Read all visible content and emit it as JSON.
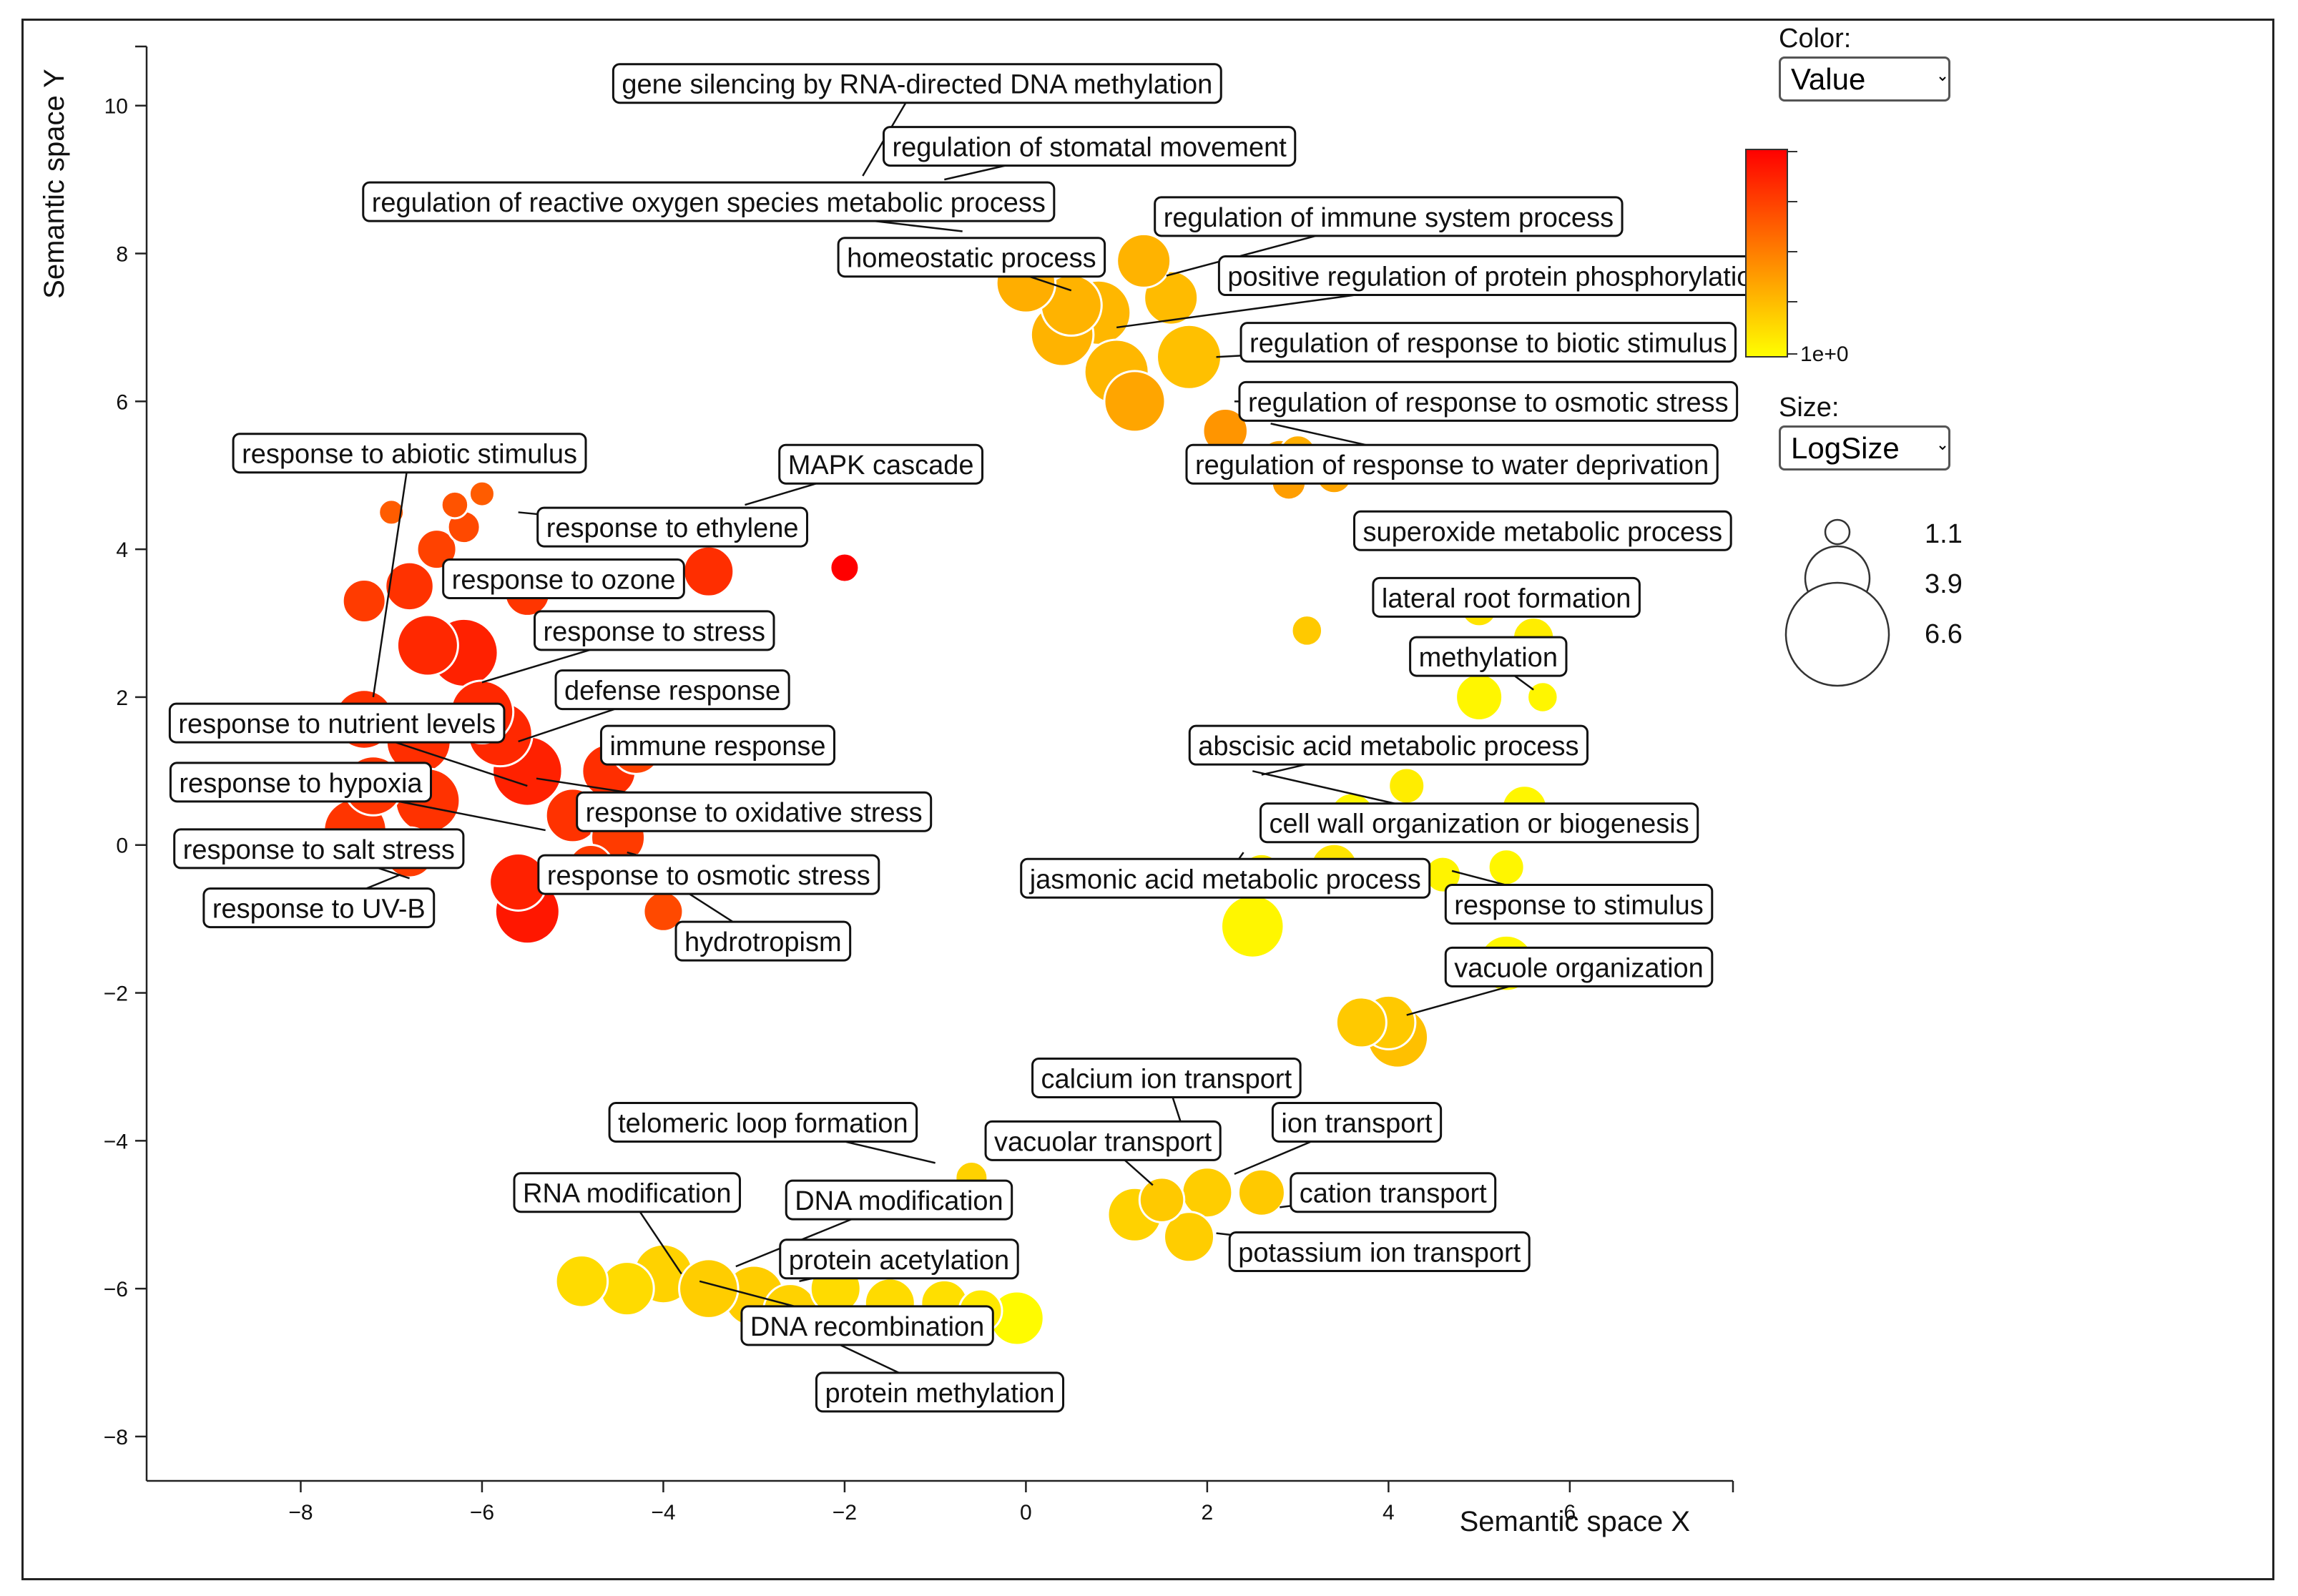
{
  "controls": {
    "color_label": "Color:",
    "color_value": "Value",
    "size_label": "Size:",
    "size_value": "LogSize",
    "colorbar_tick": "1e+0",
    "size_legend": [
      "1.1",
      "3.9",
      "6.6"
    ]
  },
  "colors": {
    "low": "#ffff00",
    "high": "#ff0000"
  },
  "chart_data": {
    "type": "scatter",
    "xlabel": "Semantic space X",
    "ylabel": "Semantic space Y",
    "xlim": [
      -9.7,
      7.8
    ],
    "ylim": [
      -8.6,
      10.8
    ],
    "xticks": [
      "−8",
      "−6",
      "−4",
      "−2",
      "0",
      "2",
      "4",
      "6"
    ],
    "xtick_values": [
      -8,
      -6,
      -4,
      -2,
      0,
      2,
      4,
      6
    ],
    "yticks": [
      "10",
      "8",
      "6",
      "4",
      "2",
      "0",
      "−2",
      "−4",
      "−6",
      "−8"
    ],
    "ytick_values": [
      10,
      8,
      6,
      4,
      2,
      0,
      -2,
      -4,
      -6,
      -8
    ],
    "points": [
      {
        "x": -2.0,
        "y": 3.75,
        "size": 1.6,
        "value": 1.0
      },
      {
        "x": -7.0,
        "y": 4.5,
        "size": 1.4,
        "value": 0.72
      },
      {
        "x": -6.0,
        "y": 4.75,
        "size": 1.4,
        "value": 0.72
      },
      {
        "x": -6.3,
        "y": 4.6,
        "size": 1.5,
        "value": 0.75
      },
      {
        "x": -6.2,
        "y": 4.3,
        "size": 1.8,
        "value": 0.78
      },
      {
        "x": -6.5,
        "y": 4.0,
        "size": 2.2,
        "value": 0.8
      },
      {
        "x": -7.3,
        "y": 3.3,
        "size": 2.4,
        "value": 0.82
      },
      {
        "x": -6.8,
        "y": 3.5,
        "size": 2.7,
        "value": 0.85
      },
      {
        "x": -4.2,
        "y": 3.6,
        "size": 2.3,
        "value": 0.85
      },
      {
        "x": -3.5,
        "y": 3.7,
        "size": 2.8,
        "value": 0.86
      },
      {
        "x": -5.5,
        "y": 3.4,
        "size": 2.5,
        "value": 0.84
      },
      {
        "x": -6.6,
        "y": 2.7,
        "size": 3.4,
        "value": 0.88
      },
      {
        "x": -6.2,
        "y": 2.6,
        "size": 3.8,
        "value": 0.9
      },
      {
        "x": -5.2,
        "y": 2.9,
        "size": 2.2,
        "value": 0.86
      },
      {
        "x": -7.3,
        "y": 1.7,
        "size": 3.3,
        "value": 0.85
      },
      {
        "x": -6.7,
        "y": 1.4,
        "size": 3.6,
        "value": 0.86
      },
      {
        "x": -6.0,
        "y": 1.8,
        "size": 3.5,
        "value": 0.88
      },
      {
        "x": -5.5,
        "y": 1.0,
        "size": 3.9,
        "value": 0.9
      },
      {
        "x": -5.8,
        "y": 1.5,
        "size": 3.6,
        "value": 0.88
      },
      {
        "x": -4.6,
        "y": 1.0,
        "size": 3.0,
        "value": 0.86
      },
      {
        "x": -4.3,
        "y": 1.3,
        "size": 2.8,
        "value": 0.8
      },
      {
        "x": -7.2,
        "y": 0.8,
        "size": 3.3,
        "value": 0.84
      },
      {
        "x": -6.6,
        "y": 0.6,
        "size": 3.6,
        "value": 0.85
      },
      {
        "x": -7.4,
        "y": 0.2,
        "size": 3.5,
        "value": 0.84
      },
      {
        "x": -6.8,
        "y": -0.1,
        "size": 2.8,
        "value": 0.82
      },
      {
        "x": -5.0,
        "y": 0.4,
        "size": 3.0,
        "value": 0.85
      },
      {
        "x": -4.5,
        "y": 0.1,
        "size": 3.0,
        "value": 0.82
      },
      {
        "x": -4.8,
        "y": -0.3,
        "size": 2.5,
        "value": 0.82
      },
      {
        "x": -5.5,
        "y": -0.9,
        "size": 3.6,
        "value": 0.93
      },
      {
        "x": -5.6,
        "y": -0.5,
        "size": 3.2,
        "value": 0.9
      },
      {
        "x": -4.3,
        "y": -0.4,
        "size": 2.2,
        "value": 0.8
      },
      {
        "x": -4.0,
        "y": -0.9,
        "size": 2.2,
        "value": 0.78
      },
      {
        "x": 0.0,
        "y": 7.6,
        "size": 3.3,
        "value": 0.45
      },
      {
        "x": 0.5,
        "y": 7.3,
        "size": 3.4,
        "value": 0.42
      },
      {
        "x": 0.8,
        "y": 7.2,
        "size": 3.6,
        "value": 0.4
      },
      {
        "x": 0.4,
        "y": 6.9,
        "size": 3.5,
        "value": 0.42
      },
      {
        "x": 1.0,
        "y": 6.4,
        "size": 3.6,
        "value": 0.4
      },
      {
        "x": 1.2,
        "y": 6.0,
        "size": 3.4,
        "value": 0.5
      },
      {
        "x": 1.8,
        "y": 6.6,
        "size": 3.6,
        "value": 0.35
      },
      {
        "x": 1.6,
        "y": 7.4,
        "size": 3.0,
        "value": 0.38
      },
      {
        "x": 1.3,
        "y": 7.9,
        "size": 3.0,
        "value": 0.42
      },
      {
        "x": 2.2,
        "y": 5.6,
        "size": 2.5,
        "value": 0.55
      },
      {
        "x": 2.8,
        "y": 5.2,
        "size": 2.3,
        "value": 0.5
      },
      {
        "x": 3.0,
        "y": 5.3,
        "size": 2.0,
        "value": 0.45
      },
      {
        "x": 3.4,
        "y": 5.0,
        "size": 2.0,
        "value": 0.5
      },
      {
        "x": 2.9,
        "y": 4.9,
        "size": 1.9,
        "value": 0.52
      },
      {
        "x": 3.1,
        "y": 2.9,
        "size": 1.7,
        "value": 0.3
      },
      {
        "x": 5.0,
        "y": 3.2,
        "size": 2.0,
        "value": 0.15
      },
      {
        "x": 5.6,
        "y": 2.8,
        "size": 2.3,
        "value": 0.1
      },
      {
        "x": 5.0,
        "y": 2.0,
        "size": 2.6,
        "value": 0.05
      },
      {
        "x": 5.7,
        "y": 2.0,
        "size": 1.7,
        "value": 0.05
      },
      {
        "x": 4.2,
        "y": 0.8,
        "size": 2.0,
        "value": 0.1
      },
      {
        "x": 3.6,
        "y": 0.4,
        "size": 2.5,
        "value": 0.05
      },
      {
        "x": 4.2,
        "y": 0.3,
        "size": 2.0,
        "value": 0.05
      },
      {
        "x": 5.5,
        "y": 0.5,
        "size": 2.5,
        "value": 0.05
      },
      {
        "x": 5.3,
        "y": -0.3,
        "size": 2.0,
        "value": 0.05
      },
      {
        "x": 4.6,
        "y": -0.4,
        "size": 2.0,
        "value": 0.06
      },
      {
        "x": 3.4,
        "y": -0.3,
        "size": 2.6,
        "value": 0.15
      },
      {
        "x": 2.6,
        "y": -0.4,
        "size": 2.3,
        "value": 0.1
      },
      {
        "x": 2.5,
        "y": -1.1,
        "size": 3.5,
        "value": 0.05
      },
      {
        "x": 5.3,
        "y": -1.6,
        "size": 3.1,
        "value": 0.05
      },
      {
        "x": 3.7,
        "y": -2.4,
        "size": 2.8,
        "value": 0.3
      },
      {
        "x": 4.1,
        "y": -2.6,
        "size": 3.4,
        "value": 0.35
      },
      {
        "x": 4.0,
        "y": -2.4,
        "size": 3.0,
        "value": 0.3
      },
      {
        "x": 1.5,
        "y": -4.8,
        "size": 2.5,
        "value": 0.3
      },
      {
        "x": 1.2,
        "y": -5.0,
        "size": 3.0,
        "value": 0.25
      },
      {
        "x": 2.0,
        "y": -4.7,
        "size": 2.8,
        "value": 0.28
      },
      {
        "x": 2.6,
        "y": -4.7,
        "size": 2.6,
        "value": 0.3
      },
      {
        "x": 1.8,
        "y": -5.3,
        "size": 2.8,
        "value": 0.28
      },
      {
        "x": -0.6,
        "y": -4.5,
        "size": 1.8,
        "value": 0.25
      },
      {
        "x": -4.9,
        "y": -5.9,
        "size": 2.9,
        "value": 0.2
      },
      {
        "x": -4.4,
        "y": -6.0,
        "size": 3.0,
        "value": 0.2
      },
      {
        "x": -4.0,
        "y": -5.8,
        "size": 3.3,
        "value": 0.25
      },
      {
        "x": -3.5,
        "y": -6.0,
        "size": 3.3,
        "value": 0.28
      },
      {
        "x": -3.0,
        "y": -6.1,
        "size": 3.4,
        "value": 0.28
      },
      {
        "x": -2.6,
        "y": -6.3,
        "size": 3.0,
        "value": 0.25
      },
      {
        "x": -2.1,
        "y": -6.0,
        "size": 2.8,
        "value": 0.2
      },
      {
        "x": -1.5,
        "y": -6.2,
        "size": 2.8,
        "value": 0.2
      },
      {
        "x": -0.9,
        "y": -6.2,
        "size": 2.6,
        "value": 0.18
      },
      {
        "x": -0.5,
        "y": -6.3,
        "size": 2.4,
        "value": 0.12
      },
      {
        "x": -0.1,
        "y": -6.4,
        "size": 3.0,
        "value": 0.02
      }
    ],
    "annotations": [
      {
        "text": "gene silencing by RNA-directed DNA methylation",
        "lx": -1.2,
        "ly": 10.3,
        "px": -1.8,
        "py": 9.05
      },
      {
        "text": "regulation of stomatal movement",
        "lx": 0.7,
        "ly": 9.45,
        "px": -0.9,
        "py": 9.0
      },
      {
        "text": "regulation of reactive oxygen species metabolic process",
        "lx": -3.5,
        "ly": 8.7,
        "px": -0.7,
        "py": 8.3
      },
      {
        "text": "homeostatic process",
        "lx": -0.6,
        "ly": 7.95,
        "px": 0.5,
        "py": 7.5
      },
      {
        "text": "regulation of immune system process",
        "lx": 4.0,
        "ly": 8.5,
        "px": 1.55,
        "py": 7.7
      },
      {
        "text": "positive regulation of protein phosphorylation",
        "lx": 5.2,
        "ly": 7.7,
        "px": 1.0,
        "py": 7.0
      },
      {
        "text": "regulation of response to biotic stimulus",
        "lx": 5.1,
        "ly": 6.8,
        "px": 2.1,
        "py": 6.6
      },
      {
        "text": "regulation of response to osmotic stress",
        "lx": 5.1,
        "ly": 6.0,
        "px": 2.3,
        "py": 6.0
      },
      {
        "text": "regulation of response to water deprivation",
        "lx": 4.7,
        "ly": 5.15,
        "px": 2.7,
        "py": 5.7
      },
      {
        "text": "superoxide metabolic process",
        "lx": 5.7,
        "ly": 4.25,
        "px": 4.2,
        "py": 4.0
      },
      {
        "text": "lateral root formation",
        "lx": 5.3,
        "ly": 3.35,
        "px": 4.4,
        "py": 3.2
      },
      {
        "text": "methylation",
        "lx": 5.1,
        "ly": 2.55,
        "px": 5.6,
        "py": 2.1
      },
      {
        "text": "abscisic acid metabolic process",
        "lx": 4.0,
        "ly": 1.35,
        "px": 2.6,
        "py": 0.95
      },
      {
        "text": "cell wall organization or biogenesis",
        "lx": 5.0,
        "ly": 0.3,
        "px": 2.5,
        "py": 1.0
      },
      {
        "text": "jasmonic acid metabolic process",
        "lx": 2.2,
        "ly": -0.45,
        "px": 2.4,
        "py": -0.1
      },
      {
        "text": "response to stimulus",
        "lx": 6.1,
        "ly": -0.8,
        "px": 4.7,
        "py": -0.35
      },
      {
        "text": "vacuole organization",
        "lx": 6.1,
        "ly": -1.65,
        "px": 4.2,
        "py": -2.3
      },
      {
        "text": "calcium ion transport",
        "lx": 1.55,
        "ly": -3.15,
        "px": 1.8,
        "py": -4.1
      },
      {
        "text": "ion transport",
        "lx": 3.65,
        "ly": -3.75,
        "px": 2.3,
        "py": -4.45
      },
      {
        "text": "vacuolar transport",
        "lx": 0.85,
        "ly": -4.0,
        "px": 1.4,
        "py": -4.6
      },
      {
        "text": "cation transport",
        "lx": 4.05,
        "ly": -4.7,
        "px": 2.8,
        "py": -4.9
      },
      {
        "text": "potassium ion transport",
        "lx": 3.9,
        "ly": -5.5,
        "px": 2.1,
        "py": -5.25
      },
      {
        "text": "telomeric loop formation",
        "lx": -2.9,
        "ly": -3.75,
        "px": -1.0,
        "py": -4.3
      },
      {
        "text": "RNA modification",
        "lx": -4.4,
        "ly": -4.7,
        "px": -3.8,
        "py": -5.8
      },
      {
        "text": "DNA modification",
        "lx": -1.4,
        "ly": -4.8,
        "px": -3.2,
        "py": -5.7
      },
      {
        "text": "protein acetylation",
        "lx": -1.4,
        "ly": -5.6,
        "px": -2.5,
        "py": -5.9
      },
      {
        "text": "DNA recombination",
        "lx": -1.75,
        "ly": -6.5,
        "px": -3.6,
        "py": -5.9
      },
      {
        "text": "protein methylation",
        "lx": -0.95,
        "ly": -7.4,
        "px": -2.5,
        "py": -6.5
      },
      {
        "text": "response to abiotic stimulus",
        "lx": -6.8,
        "ly": 5.3,
        "px": -7.2,
        "py": 2.0
      },
      {
        "text": "MAPK cascade",
        "lx": -1.6,
        "ly": 5.15,
        "px": -3.1,
        "py": 4.6
      },
      {
        "text": "response to ethylene",
        "lx": -3.9,
        "ly": 4.3,
        "px": -5.6,
        "py": 4.5
      },
      {
        "text": "response to ozone",
        "lx": -5.1,
        "ly": 3.6,
        "px": -6.3,
        "py": 3.4
      },
      {
        "text": "response to stress",
        "lx": -4.1,
        "ly": 2.9,
        "px": -6.0,
        "py": 2.2
      },
      {
        "text": "defense response",
        "lx": -3.9,
        "ly": 2.1,
        "px": -5.6,
        "py": 1.4
      },
      {
        "text": "response to nutrient levels",
        "lx": -7.6,
        "ly": 1.65,
        "px": -5.5,
        "py": 0.8
      },
      {
        "text": "immune response",
        "lx": -3.4,
        "ly": 1.35,
        "px": -4.6,
        "py": 1.2
      },
      {
        "text": "response to hypoxia",
        "lx": -8.0,
        "ly": 0.85,
        "px": -5.3,
        "py": 0.2
      },
      {
        "text": "response to oxidative stress",
        "lx": -3.0,
        "ly": 0.45,
        "px": -5.4,
        "py": 0.9
      },
      {
        "text": "response to salt stress",
        "lx": -7.8,
        "ly": -0.05,
        "px": -6.8,
        "py": -0.45
      },
      {
        "text": "response to osmotic stress",
        "lx": -3.5,
        "ly": -0.4,
        "px": -4.4,
        "py": -0.1
      },
      {
        "text": "response to UV-B",
        "lx": -7.8,
        "ly": -0.85,
        "px": -6.9,
        "py": -0.4
      },
      {
        "text": "hydrotropism",
        "lx": -2.9,
        "ly": -1.3,
        "px": -4.3,
        "py": -0.2
      }
    ]
  }
}
